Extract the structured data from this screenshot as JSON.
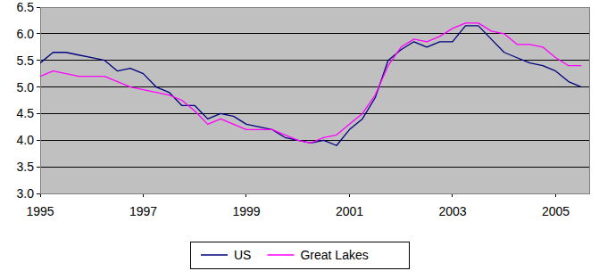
{
  "chart_data": {
    "type": "line",
    "x": [
      1995,
      1995.25,
      1995.5,
      1995.75,
      1996,
      1996.25,
      1996.5,
      1996.75,
      1997,
      1997.25,
      1997.5,
      1997.75,
      1998,
      1998.25,
      1998.5,
      1998.75,
      1999,
      1999.25,
      1999.5,
      1999.75,
      2000,
      2000.25,
      2000.5,
      2000.75,
      2001,
      2001.25,
      2001.5,
      2001.75,
      2002,
      2002.25,
      2002.5,
      2002.75,
      2003,
      2003.25,
      2003.5,
      2003.75,
      2004,
      2004.25,
      2004.5,
      2004.75,
      2005,
      2005.25,
      2005.5
    ],
    "series": [
      {
        "name": "US",
        "color": "#000080",
        "values": [
          5.45,
          5.65,
          5.65,
          5.6,
          5.55,
          5.5,
          5.3,
          5.35,
          5.25,
          5.0,
          4.9,
          4.65,
          4.65,
          4.4,
          4.5,
          4.45,
          4.3,
          4.25,
          4.2,
          4.05,
          4.0,
          3.95,
          4.0,
          3.9,
          4.2,
          4.4,
          4.8,
          5.5,
          5.7,
          5.85,
          5.75,
          5.85,
          5.85,
          6.15,
          6.15,
          5.9,
          5.65,
          5.55,
          5.45,
          5.4,
          5.3,
          5.1,
          5.0
        ]
      },
      {
        "name": "Great Lakes",
        "color": "#ff00ff",
        "values": [
          5.2,
          5.3,
          5.25,
          5.2,
          5.2,
          5.2,
          5.1,
          5.0,
          4.95,
          4.9,
          4.85,
          4.75,
          4.55,
          4.3,
          4.4,
          4.3,
          4.2,
          4.2,
          4.2,
          4.1,
          4.0,
          3.95,
          4.05,
          4.1,
          4.3,
          4.5,
          4.85,
          5.4,
          5.75,
          5.9,
          5.85,
          5.95,
          6.1,
          6.2,
          6.2,
          6.05,
          6.0,
          5.8,
          5.8,
          5.75,
          5.55,
          5.4,
          5.4
        ]
      }
    ],
    "xlim": [
      1995,
      2005.65
    ],
    "xticks": [
      1995,
      1997,
      1999,
      2001,
      2003,
      2005
    ],
    "ylim": [
      3.0,
      6.5
    ],
    "yticks": [
      {
        "value": 3,
        "label": "3.0"
      },
      {
        "value": 3.5,
        "label": "3.5"
      },
      {
        "value": 4,
        "label": "4.0"
      },
      {
        "value": 4.5,
        "label": "4.5"
      },
      {
        "value": 5,
        "label": "5.0"
      },
      {
        "value": 5.5,
        "label": "5.5"
      },
      {
        "value": 6,
        "label": "6.0"
      },
      {
        "value": 6.5,
        "label": "6.5"
      }
    ],
    "grid": true,
    "legend": "bottom"
  }
}
